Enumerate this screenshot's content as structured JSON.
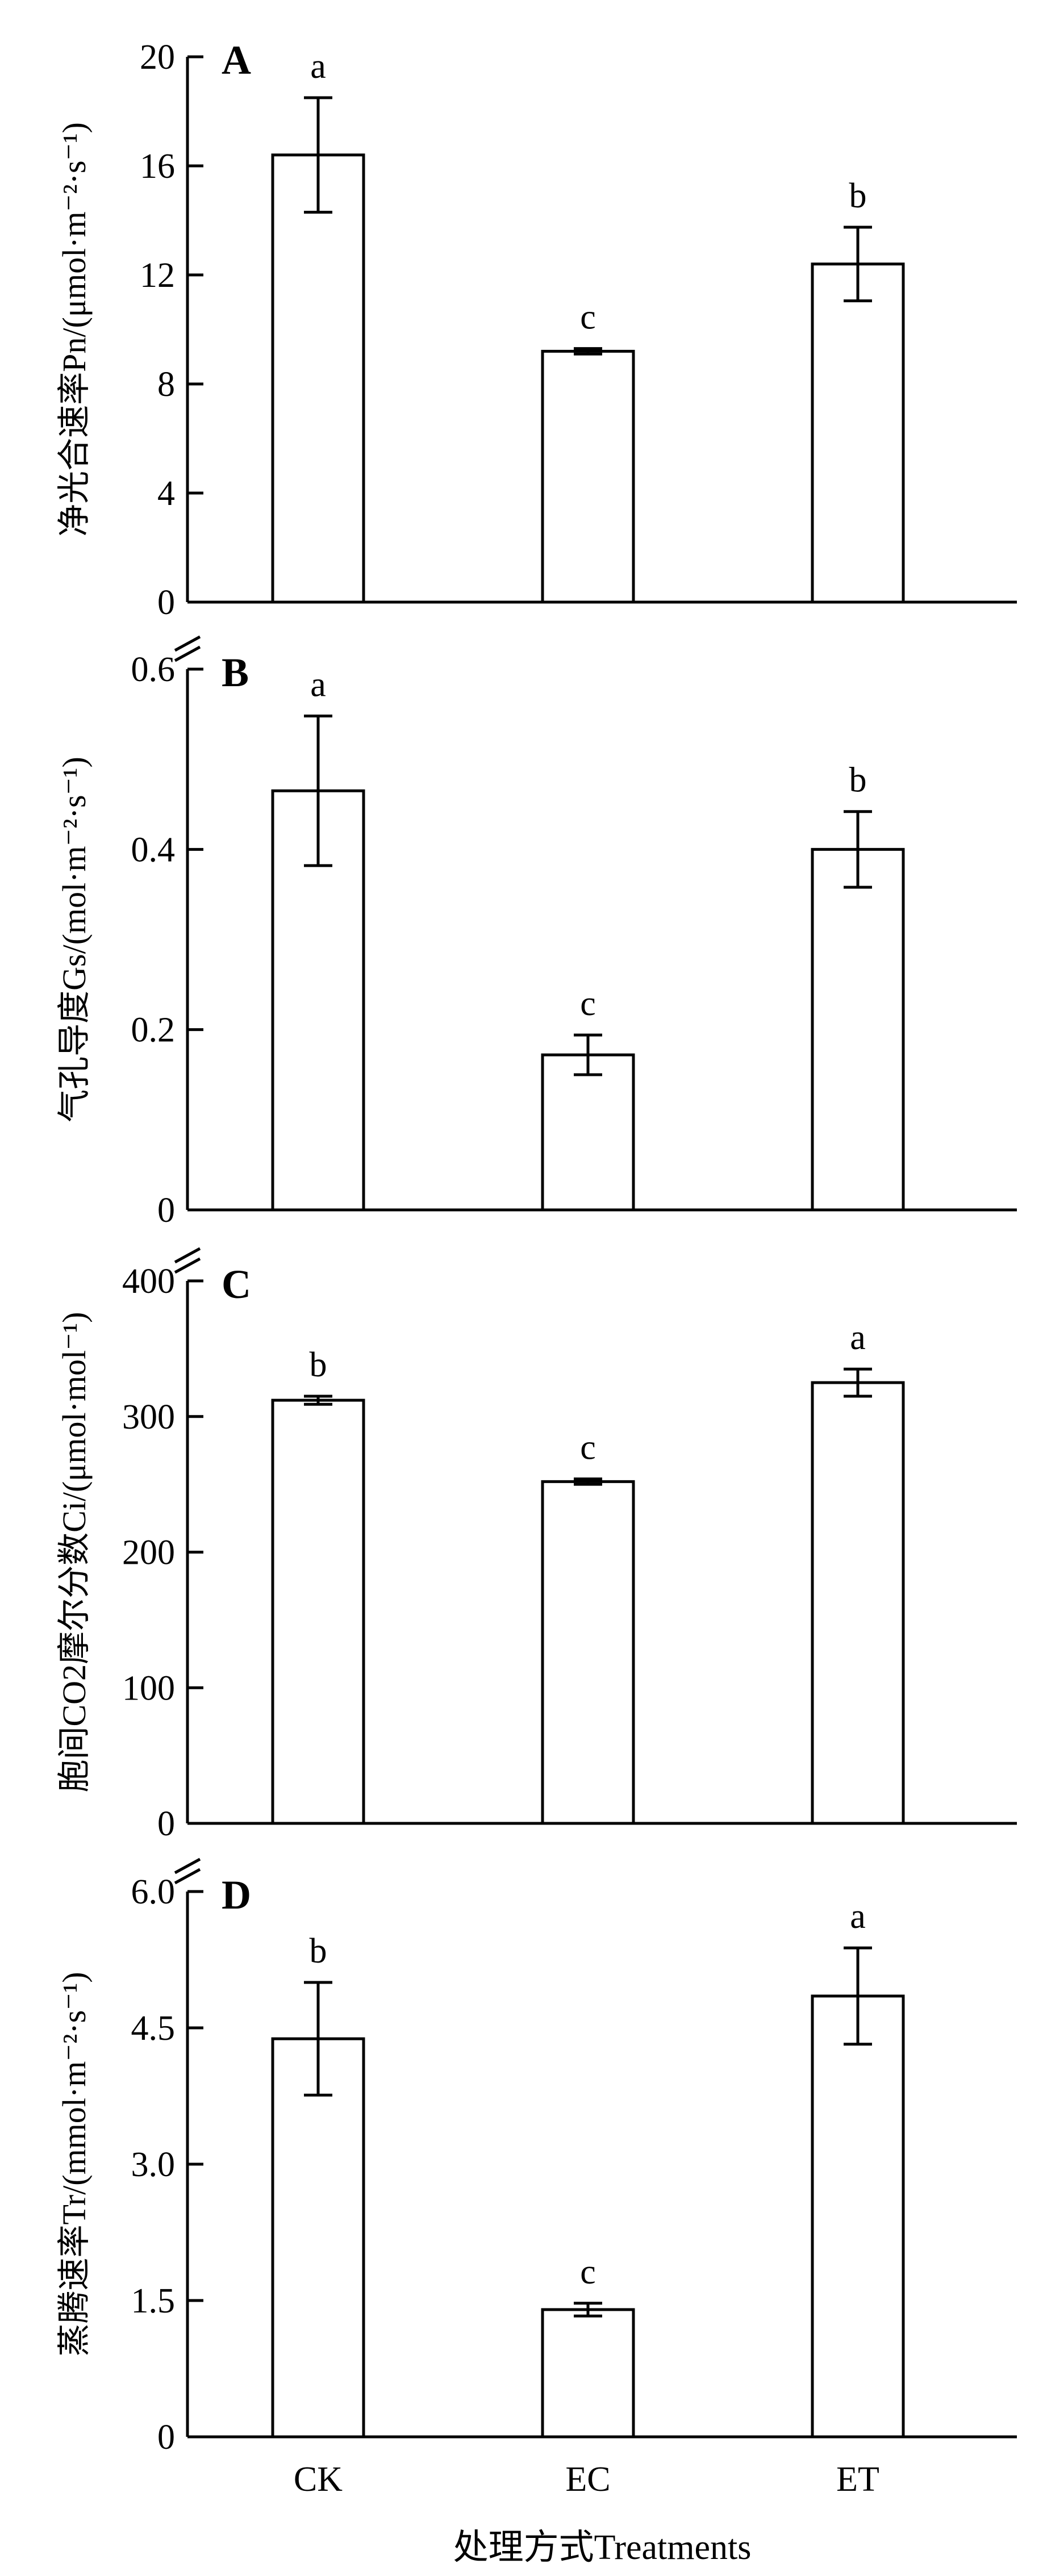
{
  "chart_data": [
    {
      "panel": "A",
      "type": "bar",
      "categories": [
        "CK",
        "EC",
        "ET"
      ],
      "values": [
        16.4,
        9.2,
        12.4
      ],
      "errors": [
        2.1,
        0.1,
        1.35
      ],
      "significance": [
        "a",
        "c",
        "b"
      ],
      "ylabel": "净光合速率Pn/(μmol·m⁻²·s⁻¹)",
      "ylim": [
        0,
        20
      ],
      "yticks": [
        "0",
        "4",
        "8",
        "12",
        "16",
        "20"
      ]
    },
    {
      "panel": "B",
      "type": "bar",
      "categories": [
        "CK",
        "EC",
        "ET"
      ],
      "values": [
        0.465,
        0.172,
        0.4
      ],
      "errors": [
        0.083,
        0.022,
        0.042
      ],
      "significance": [
        "a",
        "c",
        "b"
      ],
      "ylabel": "气孔导度Gs/(mol·m⁻²·s⁻¹)",
      "ylim": [
        0,
        0.6
      ],
      "yticks": [
        "0",
        "0.2",
        "0.4",
        "0.6"
      ]
    },
    {
      "panel": "C",
      "type": "bar",
      "categories": [
        "CK",
        "EC",
        "ET"
      ],
      "values": [
        312,
        252,
        325
      ],
      "errors": [
        3,
        2,
        10
      ],
      "significance": [
        "b",
        "c",
        "a"
      ],
      "ylabel": "胞间CO2摩尔分数Ci/(μmol·mol⁻¹)",
      "ylim": [
        0,
        400
      ],
      "yticks": [
        "0",
        "100",
        "200",
        "300",
        "400"
      ]
    },
    {
      "panel": "D",
      "type": "bar",
      "categories": [
        "CK",
        "EC",
        "ET"
      ],
      "values": [
        4.38,
        1.4,
        4.85
      ],
      "errors": [
        0.62,
        0.07,
        0.53
      ],
      "significance": [
        "b",
        "c",
        "a"
      ],
      "ylabel": "蒸腾速率Tr/(mmol·m⁻²·s⁻¹)",
      "ylim": [
        0,
        6
      ],
      "yticks": [
        "0",
        "1.5",
        "3.0",
        "4.5",
        "6.0"
      ]
    }
  ],
  "xlabel": "处理方式Treatments"
}
